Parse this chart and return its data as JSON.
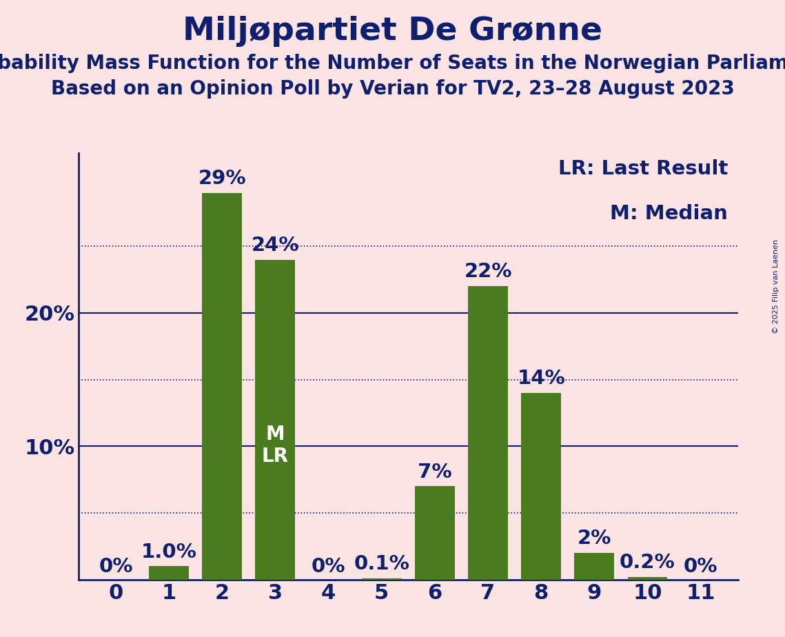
{
  "title": "Miljøpartiet De Grønne",
  "subtitle1": "Probability Mass Function for the Number of Seats in the Norwegian Parliament",
  "subtitle2": "Based on an Opinion Poll by Verian for TV2, 23–28 August 2023",
  "copyright": "© 2025 Filip van Laenen",
  "categories": [
    0,
    1,
    2,
    3,
    4,
    5,
    6,
    7,
    8,
    9,
    10,
    11
  ],
  "values": [
    0.0,
    1.0,
    29.0,
    24.0,
    0.0,
    0.1,
    7.0,
    22.0,
    14.0,
    2.0,
    0.2,
    0.0
  ],
  "bar_color": "#4a7c1f",
  "background_color": "#fce4e4",
  "text_color": "#0d1f6e",
  "label_texts": [
    "0%",
    "1.0%",
    "29%",
    "24%",
    "0%",
    "0.1%",
    "7%",
    "22%",
    "14%",
    "2%",
    "0.2%",
    "0%"
  ],
  "median_seat": 3,
  "lr_seat": 3,
  "legend_lr": "LR: Last Result",
  "legend_m": "M: Median",
  "dotted_lines": [
    5,
    15,
    25
  ],
  "solid_lines": [
    10,
    20
  ],
  "ylim": [
    0,
    32
  ],
  "title_fontsize": 34,
  "subtitle_fontsize": 20,
  "axis_fontsize": 22,
  "bar_label_fontsize": 21,
  "legend_fontsize": 21,
  "inside_label_fontsize": 20
}
